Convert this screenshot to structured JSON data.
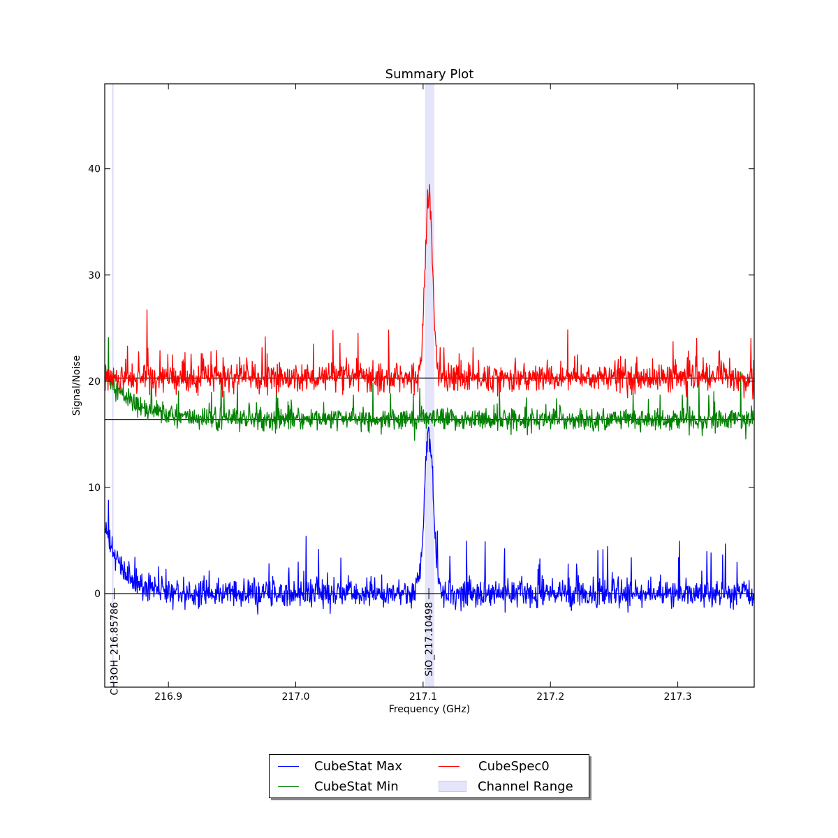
{
  "chart_data": {
    "type": "line",
    "title": "Summary Plot",
    "xlabel": "Frequency (GHz)",
    "ylabel": "Signal/Noise",
    "xlim": [
      216.85,
      217.36
    ],
    "ylim": [
      -8.8,
      48
    ],
    "xticks": [
      216.9,
      217.0,
      217.1,
      217.2,
      217.3
    ],
    "xtick_labels": [
      "216.9",
      "217.0",
      "217.1",
      "217.2",
      "217.3"
    ],
    "yticks": [
      0,
      10,
      20,
      30,
      40
    ],
    "ytick_labels": [
      "0",
      "10",
      "20",
      "30",
      "40"
    ],
    "grid": false,
    "legend_position": "bottom-center (outside plot)",
    "noise_levels": {
      "cubestat_max": 0,
      "cubestat_min": 16.4,
      "cubespec0": 20.3
    },
    "series": [
      {
        "name": "CubeStat Max",
        "color": "#0000ff",
        "baseline": 0,
        "features": [
          {
            "type": "line_peak",
            "x": 217.1045,
            "y": 15.3,
            "width": 0.0035
          },
          {
            "type": "edge_excess",
            "x": 216.85,
            "y_start": 6.3,
            "y_end": 0,
            "extent": 0.03
          },
          {
            "type": "spike",
            "x": 216.853,
            "y": 8.8
          },
          {
            "type": "spike",
            "x": 217.008,
            "y": 5.4
          }
        ],
        "noise_sigma": 0.9
      },
      {
        "name": "CubeStat Min",
        "color": "#008000",
        "baseline": 16.4,
        "features": [
          {
            "type": "edge_excess",
            "x": 216.85,
            "y_start": 21.0,
            "y_end": 16.4,
            "extent": 0.045
          },
          {
            "type": "spike",
            "x": 216.853,
            "y": 24.1
          }
        ],
        "noise_sigma": 0.7
      },
      {
        "name": "CubeSpec0",
        "color": "#ff0000",
        "baseline": 20.3,
        "features": [
          {
            "type": "line_peak",
            "x": 217.1045,
            "y": 37.5,
            "width": 0.003
          }
        ],
        "noise_sigma": 0.95
      }
    ],
    "channel_ranges": [
      {
        "x_start": 216.8555,
        "x_end": 216.857
      },
      {
        "x_start": 217.1015,
        "x_end": 217.1088
      }
    ],
    "line_markers": [
      {
        "label": "CH3OH_216.85786",
        "x": 216.8575
      },
      {
        "label": "SiO_217.10498",
        "x": 217.1045
      }
    ],
    "legend": [
      {
        "label": "CubeStat Max",
        "kind": "line",
        "color": "#0000ff"
      },
      {
        "label": "CubeSpec0",
        "kind": "line",
        "color": "#ff0000"
      },
      {
        "label": "CubeStat Min",
        "kind": "line",
        "color": "#008000"
      },
      {
        "label": "Channel Range",
        "kind": "patch",
        "color": "#e4e4fa"
      }
    ]
  }
}
